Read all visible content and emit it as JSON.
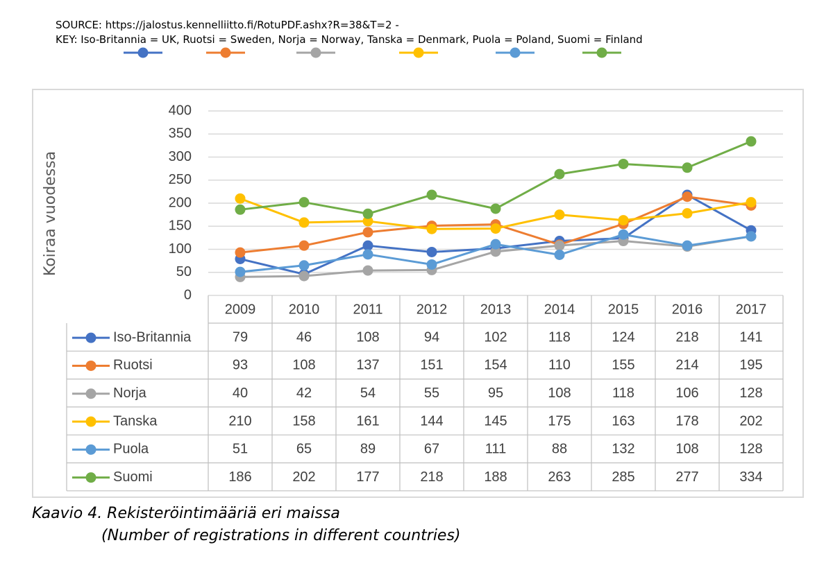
{
  "header": {
    "source": "SOURCE: https://jalostus.kennelliitto.fi/RotuPDF.ashx?R=38&T=2 -",
    "key": "KEY: Iso-Britannia = UK, Ruotsi = Sweden, Norja = Norway, Tanska = Denmark, Puola = Poland, Suomi = Finland"
  },
  "caption": {
    "line1": "Kaavio 4. Rekisteröintimääriä eri maissa",
    "line2": "(Number of registrations in different countries)"
  },
  "chart_data": {
    "type": "line",
    "title": "",
    "xlabel": "",
    "ylabel": "Koiraa vuodessa",
    "ylim": [
      0,
      400
    ],
    "yticks": [
      0,
      50,
      100,
      150,
      200,
      250,
      300,
      350,
      400
    ],
    "grid": true,
    "legend": "data table below chart",
    "categories": [
      "2009",
      "2010",
      "2011",
      "2012",
      "2013",
      "2014",
      "2015",
      "2016",
      "2017"
    ],
    "series": [
      {
        "name": "Iso-Britannia",
        "color": "#4472C4",
        "values": [
          79,
          46,
          108,
          94,
          102,
          118,
          124,
          218,
          141
        ]
      },
      {
        "name": "Ruotsi",
        "color": "#ED7D31",
        "values": [
          93,
          108,
          137,
          151,
          154,
          110,
          155,
          214,
          195
        ]
      },
      {
        "name": "Norja",
        "color": "#A5A5A5",
        "values": [
          40,
          42,
          54,
          55,
          95,
          108,
          118,
          106,
          128
        ]
      },
      {
        "name": "Tanska",
        "color": "#FFC000",
        "values": [
          210,
          158,
          161,
          144,
          145,
          175,
          163,
          178,
          202
        ]
      },
      {
        "name": "Puola",
        "color": "#5B9BD5",
        "values": [
          51,
          65,
          89,
          67,
          111,
          88,
          132,
          108,
          128
        ]
      },
      {
        "name": "Suomi",
        "color": "#70AD47",
        "values": [
          186,
          202,
          177,
          218,
          188,
          263,
          285,
          277,
          334
        ]
      }
    ]
  }
}
